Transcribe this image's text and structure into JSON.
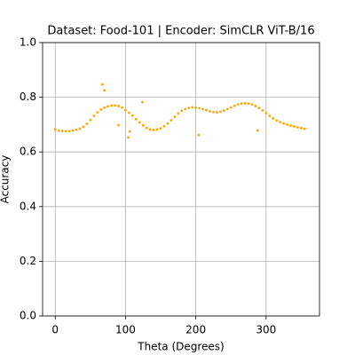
{
  "chart_data": {
    "type": "scatter",
    "title": "Dataset: Food-101 | Encoder: SimCLR ViT-B/16",
    "xlabel": "Theta (Degrees)",
    "ylabel": "Accuracy",
    "xlim": [
      -18,
      376
    ],
    "ylim": [
      0,
      1
    ],
    "xticks": [
      0,
      100,
      200,
      300
    ],
    "yticks": [
      {
        "value": 0,
        "label": "0.0"
      },
      0.2,
      0.4,
      0.6,
      0.8,
      {
        "value": 1,
        "label": "1.0"
      }
    ],
    "grid": true,
    "series": [
      {
        "color": "#ffa500",
        "x": [
          0,
          5,
          10,
          15,
          20,
          25,
          30,
          35,
          40,
          45,
          50,
          55,
          60,
          65,
          70,
          75,
          80,
          85,
          90,
          95,
          100,
          105,
          110,
          115,
          120,
          125,
          130,
          135,
          140,
          145,
          150,
          155,
          160,
          165,
          170,
          175,
          180,
          185,
          190,
          195,
          200,
          205,
          210,
          215,
          220,
          225,
          230,
          235,
          240,
          245,
          250,
          255,
          260,
          265,
          270,
          275,
          280,
          285,
          290,
          295,
          300,
          305,
          310,
          315,
          320,
          325,
          330,
          335,
          340,
          345,
          350,
          355,
          67,
          70,
          90,
          104,
          106,
          124,
          204,
          288
        ],
        "values": [
          0.682,
          0.678,
          0.677,
          0.676,
          0.676,
          0.678,
          0.681,
          0.685,
          0.692,
          0.703,
          0.717,
          0.732,
          0.745,
          0.755,
          0.762,
          0.767,
          0.77,
          0.77,
          0.768,
          0.762,
          0.753,
          0.743,
          0.733,
          0.72,
          0.708,
          0.697,
          0.688,
          0.682,
          0.68,
          0.682,
          0.686,
          0.694,
          0.704,
          0.716,
          0.729,
          0.741,
          0.751,
          0.757,
          0.761,
          0.763,
          0.762,
          0.76,
          0.757,
          0.753,
          0.749,
          0.746,
          0.745,
          0.747,
          0.751,
          0.757,
          0.763,
          0.769,
          0.774,
          0.777,
          0.778,
          0.777,
          0.774,
          0.768,
          0.761,
          0.752,
          0.742,
          0.732,
          0.723,
          0.715,
          0.709,
          0.704,
          0.7,
          0.696,
          0.693,
          0.69,
          0.687,
          0.685,
          0.847,
          0.825,
          0.698,
          0.653,
          0.675,
          0.782,
          0.662,
          0.679
        ]
      }
    ]
  }
}
